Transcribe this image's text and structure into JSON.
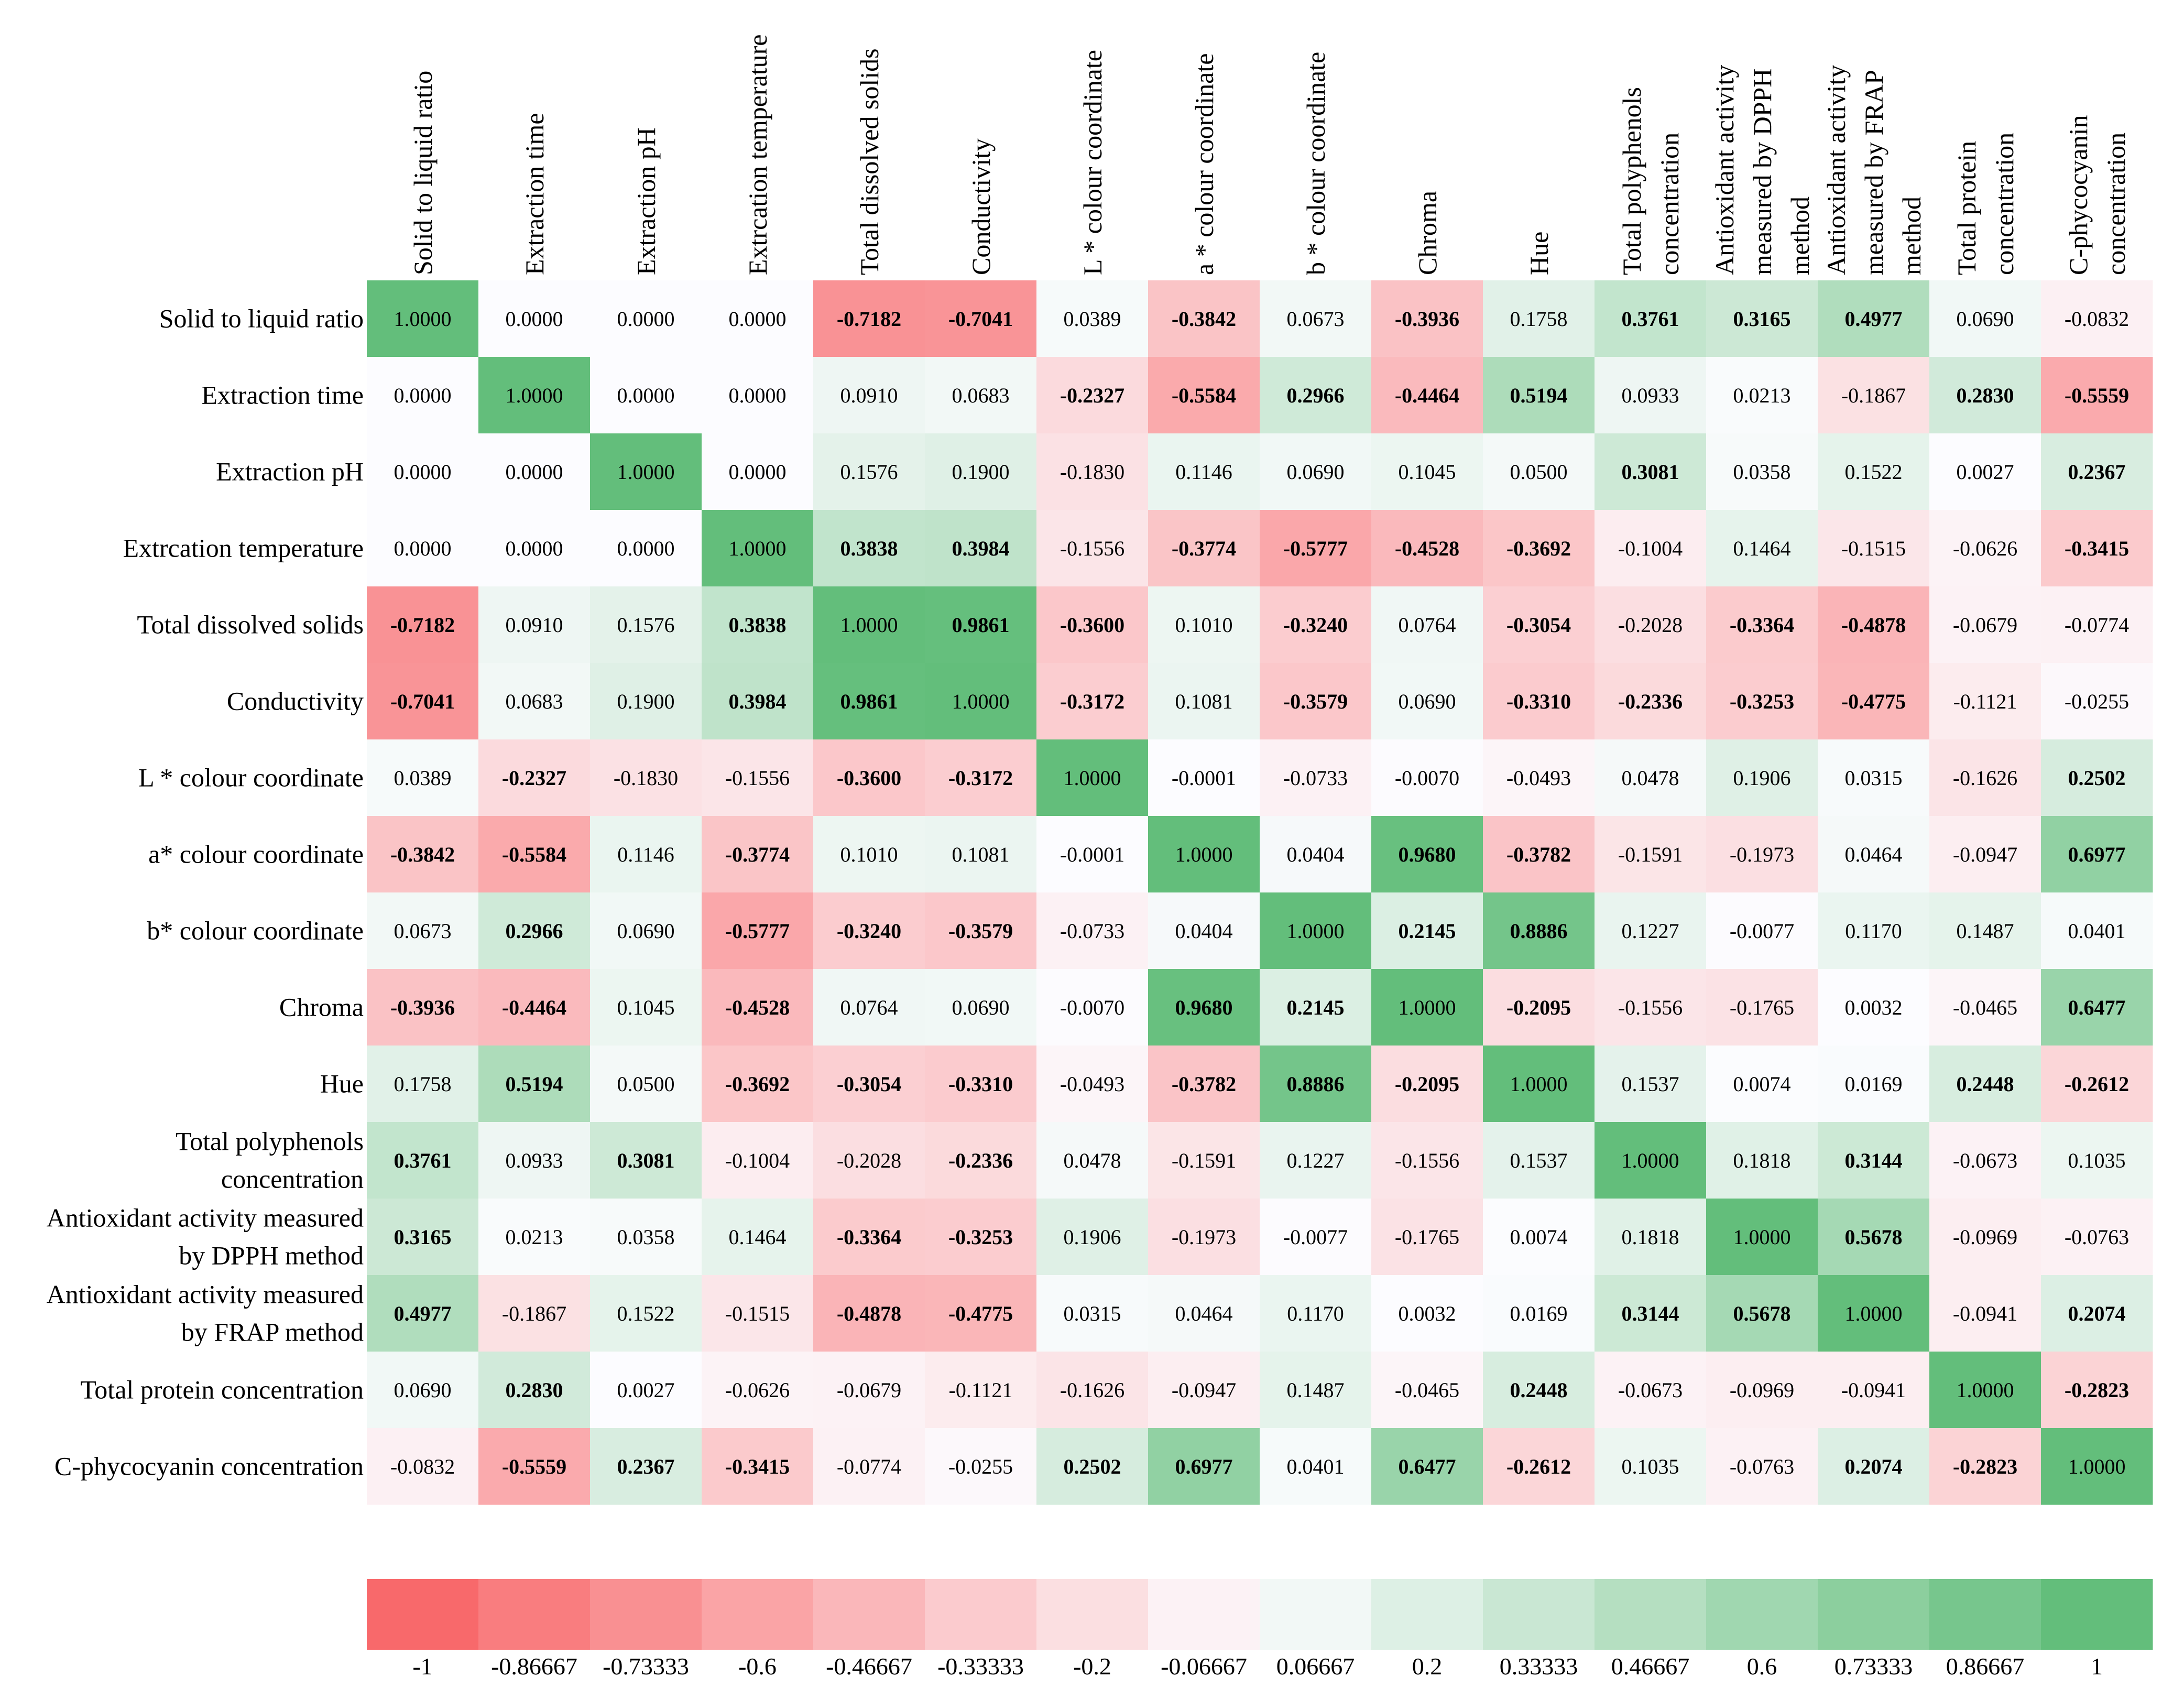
{
  "chart_data": {
    "type": "heatmap",
    "title": "",
    "variables": [
      "Solid to liquid ratio",
      "Extraction time",
      "Extraction pH",
      "Extrcation temperature",
      "Total dissolved solids",
      "Conductivity",
      "L * colour coordinate",
      "a* colour coordinate",
      "b* colour coordinate",
      "Chroma",
      "Hue",
      "Total polyphenols concentration",
      "Antioxidant activity measured by DPPH method",
      "Antioxidant activity measured by FRAP method",
      "Total protein concentration",
      "C-phycocyanin concentration"
    ],
    "row_labels": [
      [
        "Solid to liquid ratio"
      ],
      [
        "Extraction time"
      ],
      [
        "Extraction pH"
      ],
      [
        "Extrcation temperature"
      ],
      [
        "Total dissolved solids"
      ],
      [
        "Conductivity"
      ],
      [
        "L * colour coordinate"
      ],
      [
        "a* colour coordinate"
      ],
      [
        "b* colour coordinate"
      ],
      [
        "Chroma"
      ],
      [
        "Hue"
      ],
      [
        "Total polyphenols",
        "concentration"
      ],
      [
        "Antioxidant activity measured",
        "by DPPH method"
      ],
      [
        "Antioxidant activity measured",
        "by FRAP method"
      ],
      [
        "Total protein concentration"
      ],
      [
        "C-phycocyanin concentration"
      ]
    ],
    "column_labels": [
      [
        "Solid to liquid ratio"
      ],
      [
        "Extraction time"
      ],
      [
        "Extraction pH"
      ],
      [
        "Extrcation temperature"
      ],
      [
        "Total dissolved solids"
      ],
      [
        "Conductivity"
      ],
      [
        "L * colour coordinate"
      ],
      [
        "a * colour coordinate"
      ],
      [
        "b * colour coordinate"
      ],
      [
        "Chroma"
      ],
      [
        "Hue"
      ],
      [
        "Total polyphenols",
        "concentration"
      ],
      [
        "Antioxidant activity",
        "measured by DPPH",
        "method"
      ],
      [
        "Antioxidant activity",
        "measured by FRAP",
        "method"
      ],
      [
        "Total protein",
        "concentration"
      ],
      [
        "C-phycocyanin",
        "concentration"
      ]
    ],
    "matrix": [
      [
        "1.0000",
        "0.0000",
        "0.0000",
        "0.0000",
        "-0.7182",
        "-0.7041",
        "0.0389",
        "-0.3842",
        "0.0673",
        "-0.3936",
        "0.1758",
        "0.3761",
        "0.3165",
        "0.4977",
        "0.0690",
        "-0.0832"
      ],
      [
        "0.0000",
        "1.0000",
        "0.0000",
        "0.0000",
        "0.0910",
        "0.0683",
        "-0.2327",
        "-0.5584",
        "0.2966",
        "-0.4464",
        "0.5194",
        "0.0933",
        "0.0213",
        "-0.1867",
        "0.2830",
        "-0.5559"
      ],
      [
        "0.0000",
        "0.0000",
        "1.0000",
        "0.0000",
        "0.1576",
        "0.1900",
        "-0.1830",
        "0.1146",
        "0.0690",
        "0.1045",
        "0.0500",
        "0.3081",
        "0.0358",
        "0.1522",
        "0.0027",
        "0.2367"
      ],
      [
        "0.0000",
        "0.0000",
        "0.0000",
        "1.0000",
        "0.3838",
        "0.3984",
        "-0.1556",
        "-0.3774",
        "-0.5777",
        "-0.4528",
        "-0.3692",
        "-0.1004",
        "0.1464",
        "-0.1515",
        "-0.0626",
        "-0.3415"
      ],
      [
        "-0.7182",
        "0.0910",
        "0.1576",
        "0.3838",
        "1.0000",
        "0.9861",
        "-0.3600",
        "0.1010",
        "-0.3240",
        "0.0764",
        "-0.3054",
        "-0.2028",
        "-0.3364",
        "-0.4878",
        "-0.0679",
        "-0.0774"
      ],
      [
        "-0.7041",
        "0.0683",
        "0.1900",
        "0.3984",
        "0.9861",
        "1.0000",
        "-0.3172",
        "0.1081",
        "-0.3579",
        "0.0690",
        "-0.3310",
        "-0.2336",
        "-0.3253",
        "-0.4775",
        "-0.1121",
        "-0.0255"
      ],
      [
        "0.0389",
        "-0.2327",
        "-0.1830",
        "-0.1556",
        "-0.3600",
        "-0.3172",
        "1.0000",
        "-0.0001",
        "-0.0733",
        "-0.0070",
        "-0.0493",
        "0.0478",
        "0.1906",
        "0.0315",
        "-0.1626",
        "0.2502"
      ],
      [
        "-0.3842",
        "-0.5584",
        "0.1146",
        "-0.3774",
        "0.1010",
        "0.1081",
        "-0.0001",
        "1.0000",
        "0.0404",
        "0.9680",
        "-0.3782",
        "-0.1591",
        "-0.1973",
        "0.0464",
        "-0.0947",
        "0.6977"
      ],
      [
        "0.0673",
        "0.2966",
        "0.0690",
        "-0.5777",
        "-0.3240",
        "-0.3579",
        "-0.0733",
        "0.0404",
        "1.0000",
        "0.2145",
        "0.8886",
        "0.1227",
        "-0.0077",
        "0.1170",
        "0.1487",
        "0.0401"
      ],
      [
        "-0.3936",
        "-0.4464",
        "0.1045",
        "-0.4528",
        "0.0764",
        "0.0690",
        "-0.0070",
        "0.9680",
        "0.2145",
        "1.0000",
        "-0.2095",
        "-0.1556",
        "-0.1765",
        "0.0032",
        "-0.0465",
        "0.6477"
      ],
      [
        "0.1758",
        "0.5194",
        "0.0500",
        "-0.3692",
        "-0.3054",
        "-0.3310",
        "-0.0493",
        "-0.3782",
        "0.8886",
        "-0.2095",
        "1.0000",
        "0.1537",
        "0.0074",
        "0.0169",
        "0.2448",
        "-0.2612"
      ],
      [
        "0.3761",
        "0.0933",
        "0.3081",
        "-0.1004",
        "-0.2028",
        "-0.2336",
        "0.0478",
        "-0.1591",
        "0.1227",
        "-0.1556",
        "0.1537",
        "1.0000",
        "0.1818",
        "0.3144",
        "-0.0673",
        "0.1035"
      ],
      [
        "0.3165",
        "0.0213",
        "0.0358",
        "0.1464",
        "-0.3364",
        "-0.3253",
        "0.1906",
        "-0.1973",
        "-0.0077",
        "-0.1765",
        "0.0074",
        "0.1818",
        "1.0000",
        "0.5678",
        "-0.0969",
        "-0.0763"
      ],
      [
        "0.4977",
        "-0.1867",
        "0.1522",
        "-0.1515",
        "-0.4878",
        "-0.4775",
        "0.0315",
        "0.0464",
        "0.1170",
        "0.0032",
        "0.0169",
        "0.3144",
        "0.5678",
        "1.0000",
        "-0.0941",
        "0.2074"
      ],
      [
        "0.0690",
        "0.2830",
        "0.0027",
        "-0.0626",
        "-0.0679",
        "-0.1121",
        "-0.1626",
        "-0.0947",
        "0.1487",
        "-0.0465",
        "0.2448",
        "-0.0673",
        "-0.0969",
        "-0.0941",
        "1.0000",
        "-0.2823"
      ],
      [
        "-0.0832",
        "-0.5559",
        "0.2367",
        "-0.3415",
        "-0.0774",
        "-0.0255",
        "0.2502",
        "0.6977",
        "0.0401",
        "0.6477",
        "-0.2612",
        "0.1035",
        "-0.0763",
        "0.2074",
        "-0.2823",
        "1.0000"
      ]
    ],
    "bold": [
      [
        0,
        0,
        0,
        0,
        1,
        1,
        0,
        1,
        0,
        1,
        0,
        1,
        1,
        1,
        0,
        0
      ],
      [
        0,
        0,
        0,
        0,
        0,
        0,
        1,
        1,
        1,
        1,
        1,
        0,
        0,
        0,
        1,
        1
      ],
      [
        0,
        0,
        0,
        0,
        0,
        0,
        0,
        0,
        0,
        0,
        0,
        1,
        0,
        0,
        0,
        1
      ],
      [
        0,
        0,
        0,
        0,
        1,
        1,
        0,
        1,
        1,
        1,
        1,
        0,
        0,
        0,
        0,
        1
      ],
      [
        1,
        0,
        0,
        1,
        0,
        1,
        1,
        0,
        1,
        0,
        1,
        0,
        1,
        1,
        0,
        0
      ],
      [
        1,
        0,
        0,
        1,
        1,
        0,
        1,
        0,
        1,
        0,
        1,
        1,
        1,
        1,
        0,
        0
      ],
      [
        0,
        1,
        0,
        0,
        1,
        1,
        0,
        0,
        0,
        0,
        0,
        0,
        0,
        0,
        0,
        1
      ],
      [
        1,
        1,
        0,
        1,
        0,
        0,
        0,
        0,
        0,
        1,
        1,
        0,
        0,
        0,
        0,
        1
      ],
      [
        0,
        1,
        0,
        1,
        1,
        1,
        0,
        0,
        0,
        1,
        1,
        0,
        0,
        0,
        0,
        0
      ],
      [
        1,
        1,
        0,
        1,
        0,
        0,
        0,
        1,
        1,
        0,
        1,
        0,
        0,
        0,
        0,
        1
      ],
      [
        0,
        1,
        0,
        1,
        1,
        1,
        0,
        1,
        1,
        1,
        0,
        0,
        0,
        0,
        1,
        1
      ],
      [
        1,
        0,
        1,
        0,
        0,
        1,
        0,
        0,
        0,
        0,
        0,
        0,
        0,
        1,
        0,
        0
      ],
      [
        1,
        0,
        0,
        0,
        1,
        1,
        0,
        0,
        0,
        0,
        0,
        0,
        0,
        1,
        0,
        0
      ],
      [
        1,
        0,
        0,
        0,
        1,
        1,
        0,
        0,
        0,
        0,
        0,
        1,
        1,
        0,
        0,
        1
      ],
      [
        0,
        1,
        0,
        0,
        0,
        0,
        0,
        0,
        0,
        0,
        1,
        0,
        0,
        0,
        0,
        1
      ],
      [
        0,
        1,
        1,
        1,
        0,
        0,
        1,
        1,
        0,
        1,
        1,
        0,
        0,
        1,
        1,
        0
      ]
    ],
    "color_scale": {
      "min": -1,
      "max": 1,
      "low_color": "#f8696b",
      "mid_color": "#fcfcff",
      "high_color": "#63be7b",
      "tick_labels": [
        "-1",
        "-0.86667",
        "-0.73333",
        "-0.6",
        "-0.46667",
        "-0.33333",
        "-0.2",
        "-0.06667",
        "0.06667",
        "0.2",
        "0.33333",
        "0.46667",
        "0.6",
        "0.73333",
        "0.86667",
        "1"
      ]
    },
    "xlabel": "",
    "ylabel": "",
    "legend": "bottom"
  }
}
